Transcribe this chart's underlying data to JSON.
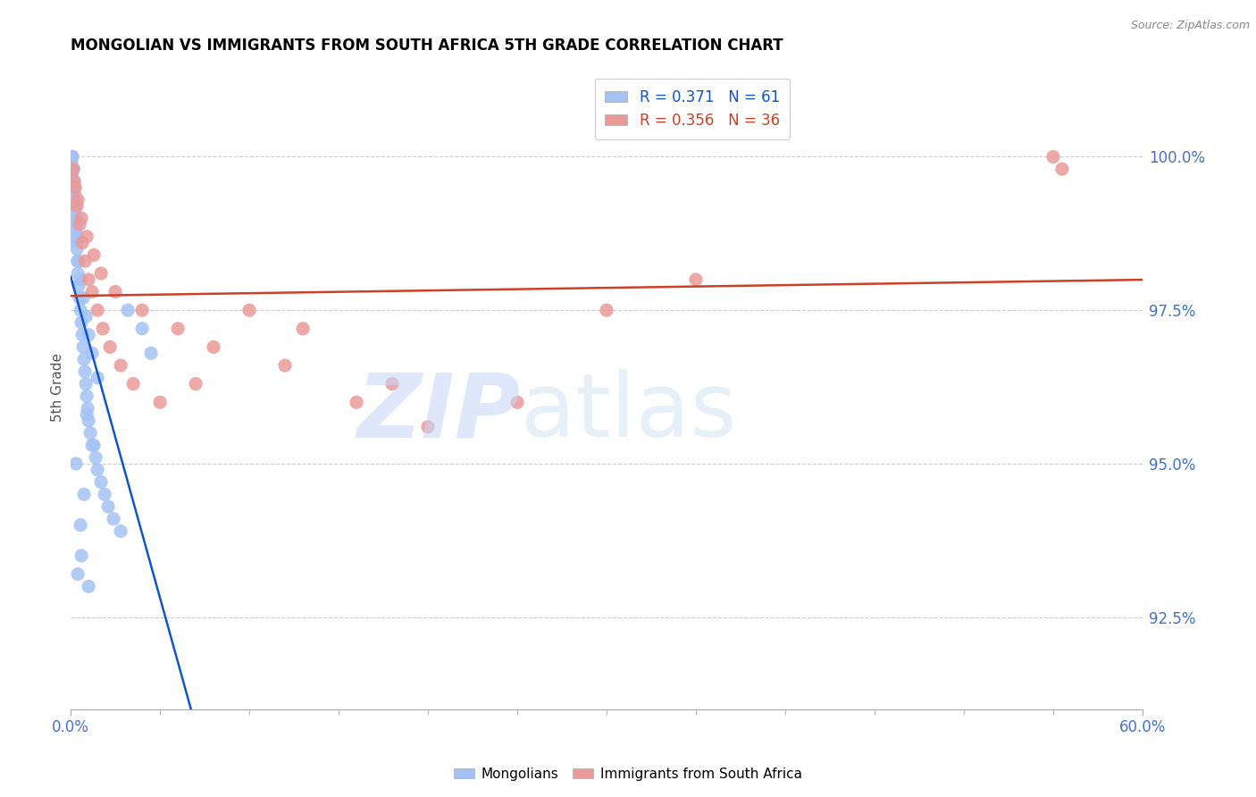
{
  "title": "MONGOLIAN VS IMMIGRANTS FROM SOUTH AFRICA 5TH GRADE CORRELATION CHART",
  "source": "Source: ZipAtlas.com",
  "ylabel": "5th Grade",
  "xlim": [
    0.0,
    60.0
  ],
  "ylim": [
    91.0,
    101.5
  ],
  "y_tick_labels_right": [
    "92.5%",
    "95.0%",
    "97.5%",
    "100.0%"
  ],
  "y_tick_values_right": [
    92.5,
    95.0,
    97.5,
    100.0
  ],
  "legend_blue_r": "0.371",
  "legend_blue_n": "61",
  "legend_pink_r": "0.356",
  "legend_pink_n": "36",
  "blue_color": "#a4c2f4",
  "pink_color": "#ea9999",
  "trendline_blue": "#1155cc",
  "trendline_pink": "#cc4125",
  "blue_x": [
    0.05,
    0.08,
    0.1,
    0.12,
    0.15,
    0.18,
    0.2,
    0.22,
    0.25,
    0.28,
    0.3,
    0.32,
    0.35,
    0.38,
    0.4,
    0.45,
    0.5,
    0.55,
    0.6,
    0.65,
    0.7,
    0.75,
    0.8,
    0.85,
    0.9,
    0.95,
    1.0,
    1.1,
    1.2,
    1.4,
    1.5,
    1.7,
    1.9,
    2.1,
    2.4,
    2.8,
    3.2,
    4.0,
    4.5,
    0.05,
    0.08,
    0.12,
    0.18,
    0.22,
    0.28,
    0.35,
    0.45,
    0.55,
    0.7,
    0.85,
    1.0,
    1.2,
    1.5,
    0.9,
    1.3,
    0.6,
    0.4,
    1.0,
    0.75,
    0.55,
    0.3
  ],
  "blue_y": [
    100.0,
    100.0,
    100.0,
    99.8,
    99.8,
    99.6,
    99.5,
    99.4,
    99.2,
    99.0,
    98.9,
    98.7,
    98.5,
    98.3,
    98.1,
    97.9,
    97.7,
    97.5,
    97.3,
    97.1,
    96.9,
    96.7,
    96.5,
    96.3,
    96.1,
    95.9,
    95.7,
    95.5,
    95.3,
    95.1,
    94.9,
    94.7,
    94.5,
    94.3,
    94.1,
    93.9,
    97.5,
    97.2,
    96.8,
    99.9,
    99.7,
    99.5,
    99.3,
    99.1,
    98.8,
    98.6,
    98.3,
    98.0,
    97.7,
    97.4,
    97.1,
    96.8,
    96.4,
    95.8,
    95.3,
    93.5,
    93.2,
    93.0,
    94.5,
    94.0,
    95.0
  ],
  "pink_x": [
    0.15,
    0.25,
    0.35,
    0.5,
    0.65,
    0.8,
    1.0,
    1.2,
    1.5,
    1.8,
    2.2,
    2.8,
    3.5,
    5.0,
    7.0,
    10.0,
    13.0,
    16.0,
    20.0,
    25.0,
    30.0,
    35.0,
    55.0,
    55.5,
    0.2,
    0.4,
    0.6,
    0.9,
    1.3,
    1.7,
    2.5,
    4.0,
    6.0,
    8.0,
    12.0,
    18.0
  ],
  "pink_y": [
    99.8,
    99.5,
    99.2,
    98.9,
    98.6,
    98.3,
    98.0,
    97.8,
    97.5,
    97.2,
    96.9,
    96.6,
    96.3,
    96.0,
    96.3,
    97.5,
    97.2,
    96.0,
    95.6,
    96.0,
    97.5,
    98.0,
    100.0,
    99.8,
    99.6,
    99.3,
    99.0,
    98.7,
    98.4,
    98.1,
    97.8,
    97.5,
    97.2,
    96.9,
    96.6,
    96.3
  ]
}
